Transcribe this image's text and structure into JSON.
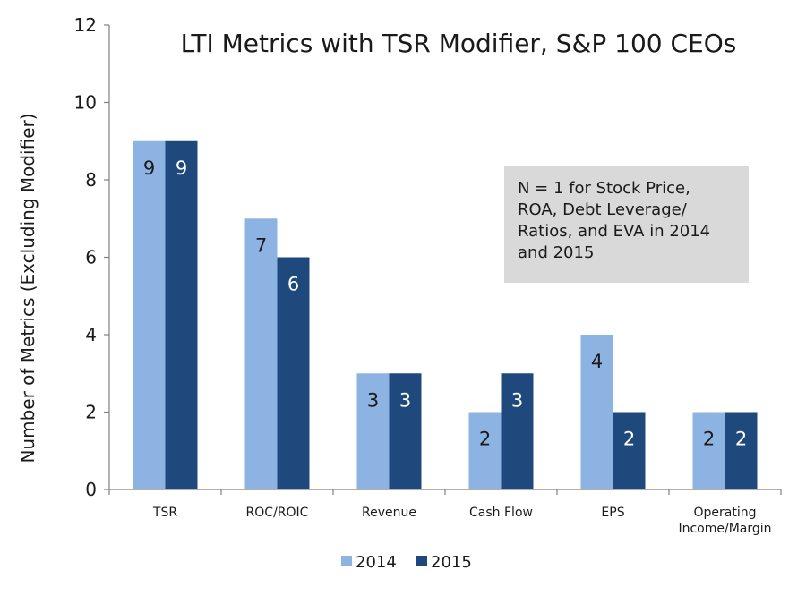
{
  "chart_data": {
    "type": "bar",
    "title": "LTI Metrics with TSR Modifier, S&P 100 CEOs",
    "ylabel": "Number of Metrics (Excluding Modifier)",
    "xlabel": "",
    "ylim": [
      0,
      12
    ],
    "yticks": [
      0,
      2,
      4,
      6,
      8,
      10,
      12
    ],
    "grid": false,
    "legend_position": "bottom",
    "categories": [
      [
        "TSR"
      ],
      [
        "ROC/ROIC"
      ],
      [
        "Revenue"
      ],
      [
        "Cash Flow"
      ],
      [
        "EPS"
      ],
      [
        "Operating",
        "Income/Margin"
      ]
    ],
    "series": [
      {
        "name": "2014",
        "color": "#8DB3E2",
        "label_color": "#1a1a1a",
        "values": [
          9,
          7,
          3,
          2,
          4,
          2
        ]
      },
      {
        "name": "2015",
        "color": "#1F497D",
        "label_color": "#ffffff",
        "values": [
          9,
          6,
          3,
          3,
          2,
          2
        ]
      }
    ],
    "annotation": {
      "lines": [
        "N = 1 for Stock Price,",
        "ROA, Debt Leverage/",
        "Ratios, and EVA in 2014",
        "and 2015"
      ],
      "background": "#D9D9D9"
    }
  }
}
